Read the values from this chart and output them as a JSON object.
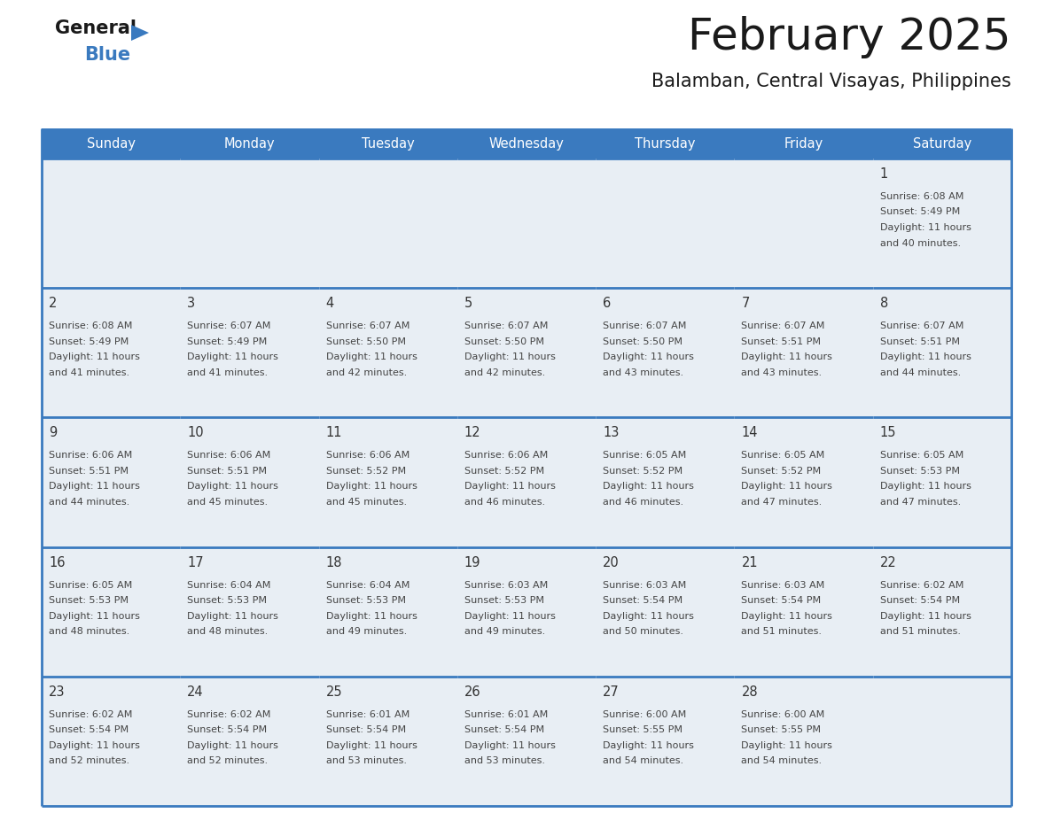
{
  "title": "February 2025",
  "subtitle": "Balamban, Central Visayas, Philippines",
  "days_of_week": [
    "Sunday",
    "Monday",
    "Tuesday",
    "Wednesday",
    "Thursday",
    "Friday",
    "Saturday"
  ],
  "header_bg": "#3a7abf",
  "header_text": "#ffffff",
  "cell_bg": "#e8eef4",
  "border_color": "#3a7abf",
  "day_number_color": "#333333",
  "info_text_color": "#444444",
  "title_color": "#1a1a1a",
  "subtitle_color": "#1a1a1a",
  "logo_general_color": "#1a1a1a",
  "logo_blue_color": "#3a7abf",
  "calendar": [
    [
      null,
      null,
      null,
      null,
      null,
      null,
      1
    ],
    [
      2,
      3,
      4,
      5,
      6,
      7,
      8
    ],
    [
      9,
      10,
      11,
      12,
      13,
      14,
      15
    ],
    [
      16,
      17,
      18,
      19,
      20,
      21,
      22
    ],
    [
      23,
      24,
      25,
      26,
      27,
      28,
      null
    ]
  ],
  "day_data": {
    "1": {
      "sunrise": "6:08 AM",
      "sunset": "5:49 PM",
      "daylight_hours": 11,
      "daylight_minutes": 40
    },
    "2": {
      "sunrise": "6:08 AM",
      "sunset": "5:49 PM",
      "daylight_hours": 11,
      "daylight_minutes": 41
    },
    "3": {
      "sunrise": "6:07 AM",
      "sunset": "5:49 PM",
      "daylight_hours": 11,
      "daylight_minutes": 41
    },
    "4": {
      "sunrise": "6:07 AM",
      "sunset": "5:50 PM",
      "daylight_hours": 11,
      "daylight_minutes": 42
    },
    "5": {
      "sunrise": "6:07 AM",
      "sunset": "5:50 PM",
      "daylight_hours": 11,
      "daylight_minutes": 42
    },
    "6": {
      "sunrise": "6:07 AM",
      "sunset": "5:50 PM",
      "daylight_hours": 11,
      "daylight_minutes": 43
    },
    "7": {
      "sunrise": "6:07 AM",
      "sunset": "5:51 PM",
      "daylight_hours": 11,
      "daylight_minutes": 43
    },
    "8": {
      "sunrise": "6:07 AM",
      "sunset": "5:51 PM",
      "daylight_hours": 11,
      "daylight_minutes": 44
    },
    "9": {
      "sunrise": "6:06 AM",
      "sunset": "5:51 PM",
      "daylight_hours": 11,
      "daylight_minutes": 44
    },
    "10": {
      "sunrise": "6:06 AM",
      "sunset": "5:51 PM",
      "daylight_hours": 11,
      "daylight_minutes": 45
    },
    "11": {
      "sunrise": "6:06 AM",
      "sunset": "5:52 PM",
      "daylight_hours": 11,
      "daylight_minutes": 45
    },
    "12": {
      "sunrise": "6:06 AM",
      "sunset": "5:52 PM",
      "daylight_hours": 11,
      "daylight_minutes": 46
    },
    "13": {
      "sunrise": "6:05 AM",
      "sunset": "5:52 PM",
      "daylight_hours": 11,
      "daylight_minutes": 46
    },
    "14": {
      "sunrise": "6:05 AM",
      "sunset": "5:52 PM",
      "daylight_hours": 11,
      "daylight_minutes": 47
    },
    "15": {
      "sunrise": "6:05 AM",
      "sunset": "5:53 PM",
      "daylight_hours": 11,
      "daylight_minutes": 47
    },
    "16": {
      "sunrise": "6:05 AM",
      "sunset": "5:53 PM",
      "daylight_hours": 11,
      "daylight_minutes": 48
    },
    "17": {
      "sunrise": "6:04 AM",
      "sunset": "5:53 PM",
      "daylight_hours": 11,
      "daylight_minutes": 48
    },
    "18": {
      "sunrise": "6:04 AM",
      "sunset": "5:53 PM",
      "daylight_hours": 11,
      "daylight_minutes": 49
    },
    "19": {
      "sunrise": "6:03 AM",
      "sunset": "5:53 PM",
      "daylight_hours": 11,
      "daylight_minutes": 49
    },
    "20": {
      "sunrise": "6:03 AM",
      "sunset": "5:54 PM",
      "daylight_hours": 11,
      "daylight_minutes": 50
    },
    "21": {
      "sunrise": "6:03 AM",
      "sunset": "5:54 PM",
      "daylight_hours": 11,
      "daylight_minutes": 51
    },
    "22": {
      "sunrise": "6:02 AM",
      "sunset": "5:54 PM",
      "daylight_hours": 11,
      "daylight_minutes": 51
    },
    "23": {
      "sunrise": "6:02 AM",
      "sunset": "5:54 PM",
      "daylight_hours": 11,
      "daylight_minutes": 52
    },
    "24": {
      "sunrise": "6:02 AM",
      "sunset": "5:54 PM",
      "daylight_hours": 11,
      "daylight_minutes": 52
    },
    "25": {
      "sunrise": "6:01 AM",
      "sunset": "5:54 PM",
      "daylight_hours": 11,
      "daylight_minutes": 53
    },
    "26": {
      "sunrise": "6:01 AM",
      "sunset": "5:54 PM",
      "daylight_hours": 11,
      "daylight_minutes": 53
    },
    "27": {
      "sunrise": "6:00 AM",
      "sunset": "5:55 PM",
      "daylight_hours": 11,
      "daylight_minutes": 54
    },
    "28": {
      "sunrise": "6:00 AM",
      "sunset": "5:55 PM",
      "daylight_hours": 11,
      "daylight_minutes": 54
    }
  }
}
